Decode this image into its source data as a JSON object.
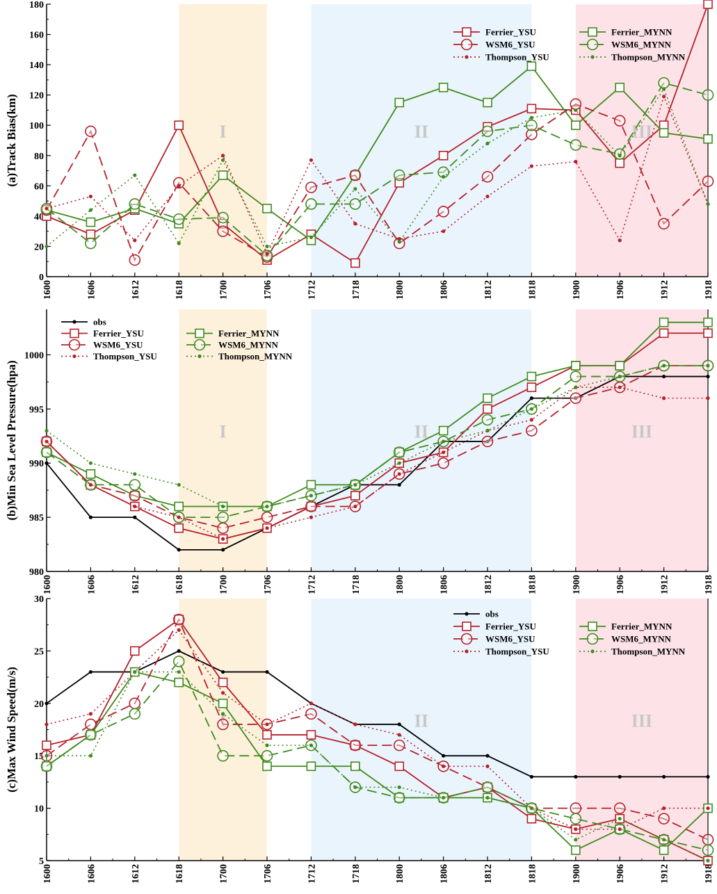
{
  "colors": {
    "obs": "#000000",
    "ysu": "#b5202a",
    "mynn": "#3f8a1e",
    "shade_I": "#fdf1dc",
    "shade_II": "#e9f4fd",
    "shade_III": "#fde3e7",
    "roman_text": "#c8c8c8"
  },
  "chart_data": [
    {
      "type": "line",
      "ylabel": "(a)Track Bias(km)",
      "categories": [
        "1600",
        "1606",
        "1612",
        "1618",
        "1700",
        "1706",
        "1712",
        "1718",
        "1800",
        "1806",
        "1812",
        "1818",
        "1900",
        "1906",
        "1912",
        "1918"
      ],
      "ylim": [
        0,
        180
      ],
      "yticks": [
        "0",
        "20",
        "40",
        "60",
        "80",
        "100",
        "120",
        "140",
        "160",
        "180"
      ],
      "periods": [
        {
          "label": "I",
          "from": 3,
          "to": 5
        },
        {
          "label": "II",
          "from": 6,
          "to": 11
        },
        {
          "label": "III",
          "from": 12,
          "to": 15
        }
      ],
      "legend_position": "top-right",
      "series": [
        {
          "name": "Ferrier_YSU",
          "color": "ysu",
          "style": "solid",
          "marker": "square",
          "values": [
            40,
            28,
            44,
            100,
            35,
            11,
            28,
            9,
            62,
            80,
            99,
            111,
            110,
            75,
            100,
            180
          ]
        },
        {
          "name": "Ferrier_MYNN",
          "color": "mynn",
          "style": "solid",
          "marker": "square",
          "values": [
            44,
            36,
            45,
            35,
            67,
            45,
            24,
            67,
            115,
            125,
            115,
            139,
            100,
            125,
            95,
            91
          ]
        },
        {
          "name": "WSM6_YSU",
          "color": "ysu",
          "style": "dashed",
          "marker": "circle",
          "values": [
            44,
            96,
            11,
            62,
            30,
            13,
            59,
            67,
            22,
            43,
            66,
            94,
            114,
            103,
            35,
            63
          ]
        },
        {
          "name": "WSM6_MYNN",
          "color": "mynn",
          "style": "dashed",
          "marker": "circle",
          "values": [
            45,
            22,
            48,
            38,
            39,
            14,
            48,
            48,
            67,
            69,
            96,
            100,
            87,
            81,
            128,
            120
          ]
        },
        {
          "name": "Thompson_YSU",
          "color": "ysu",
          "style": "dotted",
          "marker": "dot",
          "values": [
            45,
            53,
            24,
            60,
            80,
            15,
            77,
            35,
            25,
            30,
            53,
            73,
            76,
            24,
            119,
            48
          ]
        },
        {
          "name": "Thompson_MYNN",
          "color": "mynn",
          "style": "dotted",
          "marker": "dot",
          "values": [
            20,
            44,
            67,
            22,
            77,
            20,
            26,
            58,
            23,
            66,
            88,
            105,
            110,
            80,
            124,
            48
          ]
        }
      ]
    },
    {
      "type": "line",
      "ylabel": "(b)Min Sea Level Pressure(hpa)",
      "categories": [
        "1600",
        "1606",
        "1612",
        "1618",
        "1700",
        "1706",
        "1712",
        "1718",
        "1800",
        "1806",
        "1812",
        "1818",
        "1900",
        "1906",
        "1912",
        "1918"
      ],
      "ylim": [
        980,
        1004.2
      ],
      "yticks": [
        "980",
        "985",
        "990",
        "995",
        "1000"
      ],
      "periods": [
        {
          "label": "I",
          "from": 3,
          "to": 5
        },
        {
          "label": "II",
          "from": 6,
          "to": 11
        },
        {
          "label": "III",
          "from": 12,
          "to": 15
        }
      ],
      "legend_position": "top-left",
      "series": [
        {
          "name": "obs",
          "color": "obs",
          "style": "solid",
          "marker": "dot",
          "values": [
            990,
            985,
            985,
            982,
            982,
            984,
            986,
            988,
            988,
            992,
            992,
            996,
            996,
            998,
            998,
            998
          ]
        },
        {
          "name": "Ferrier_YSU",
          "color": "ysu",
          "style": "solid",
          "marker": "square",
          "values": [
            992,
            988,
            986,
            984,
            983,
            984,
            986,
            987,
            990,
            991,
            995,
            997,
            999,
            999,
            1002,
            1002
          ]
        },
        {
          "name": "Ferrier_MYNN",
          "color": "mynn",
          "style": "solid",
          "marker": "square",
          "values": [
            991,
            989,
            987,
            986,
            986,
            986,
            988,
            988,
            991,
            993,
            996,
            998,
            999,
            999,
            1003,
            1003
          ]
        },
        {
          "name": "WSM6_YSU",
          "color": "ysu",
          "style": "dashed",
          "marker": "circle",
          "values": [
            992,
            988,
            987,
            985,
            984,
            985,
            986,
            986,
            989,
            990,
            992,
            993,
            996,
            997,
            999,
            999
          ]
        },
        {
          "name": "WSM6_MYNN",
          "color": "mynn",
          "style": "dashed",
          "marker": "circle",
          "values": [
            991,
            988,
            988,
            985,
            985,
            986,
            987,
            988,
            991,
            992,
            994,
            995,
            998,
            998,
            999,
            999
          ]
        },
        {
          "name": "Thompson_YSU",
          "color": "ysu",
          "style": "dotted",
          "marker": "dot",
          "values": [
            992,
            988,
            986,
            985,
            983,
            984,
            985,
            986,
            989,
            991,
            993,
            994,
            997,
            997,
            996,
            996
          ]
        },
        {
          "name": "Thompson_MYNN",
          "color": "mynn",
          "style": "dotted",
          "marker": "dot",
          "values": [
            993,
            990,
            989,
            988,
            986,
            986,
            987,
            988,
            990,
            992,
            993,
            995,
            997,
            998,
            999,
            999
          ]
        }
      ]
    },
    {
      "type": "line",
      "ylabel": "(c)Max Wind Speed(m/s)",
      "categories": [
        "1600",
        "1606",
        "1612",
        "1618",
        "1700",
        "1706",
        "1712",
        "1718",
        "1800",
        "1806",
        "1812",
        "1818",
        "1900",
        "1906",
        "1912",
        "1918"
      ],
      "ylim": [
        5,
        30
      ],
      "yticks": [
        "5",
        "10",
        "15",
        "20",
        "25",
        "30"
      ],
      "periods": [
        {
          "label": "I",
          "from": 3,
          "to": 5
        },
        {
          "label": "II",
          "from": 6,
          "to": 11
        },
        {
          "label": "III",
          "from": 12,
          "to": 15
        }
      ],
      "legend_position": "top-right",
      "series": [
        {
          "name": "obs",
          "color": "obs",
          "style": "solid",
          "marker": "dot",
          "values": [
            20,
            23,
            23,
            25,
            23,
            23,
            20,
            18,
            18,
            15,
            15,
            13,
            13,
            13,
            13,
            13
          ]
        },
        {
          "name": "Ferrier_YSU",
          "color": "ysu",
          "style": "solid",
          "marker": "square",
          "values": [
            16,
            17,
            25,
            28,
            22,
            17,
            17,
            16,
            14,
            11,
            12,
            9,
            8,
            9,
            7,
            5
          ]
        },
        {
          "name": "Ferrier_MYNN",
          "color": "mynn",
          "style": "solid",
          "marker": "square",
          "values": [
            14,
            17,
            23,
            22,
            20,
            14,
            14,
            14,
            11,
            11,
            11,
            10,
            6,
            8,
            6,
            10
          ]
        },
        {
          "name": "WSM6_YSU",
          "color": "ysu",
          "style": "dashed",
          "marker": "circle",
          "values": [
            15,
            18,
            20,
            28,
            18,
            18,
            19,
            16,
            16,
            14,
            12,
            10,
            10,
            10,
            9,
            7
          ]
        },
        {
          "name": "WSM6_MYNN",
          "color": "mynn",
          "style": "dashed",
          "marker": "circle",
          "values": [
            14,
            17,
            19,
            24,
            15,
            15,
            16,
            12,
            11,
            11,
            12,
            10,
            9,
            8,
            7,
            6
          ]
        },
        {
          "name": "Thompson_YSU",
          "color": "ysu",
          "style": "dotted",
          "marker": "dot",
          "values": [
            18,
            19,
            23,
            27,
            21,
            18,
            20,
            18,
            17,
            14,
            14,
            10,
            8,
            8,
            10,
            10
          ]
        },
        {
          "name": "Thompson_MYNN",
          "color": "mynn",
          "style": "dotted",
          "marker": "dot",
          "values": [
            15,
            15,
            23,
            23,
            19,
            16,
            16,
            12,
            12,
            11,
            11,
            10,
            7,
            9,
            7,
            5
          ]
        }
      ]
    }
  ]
}
